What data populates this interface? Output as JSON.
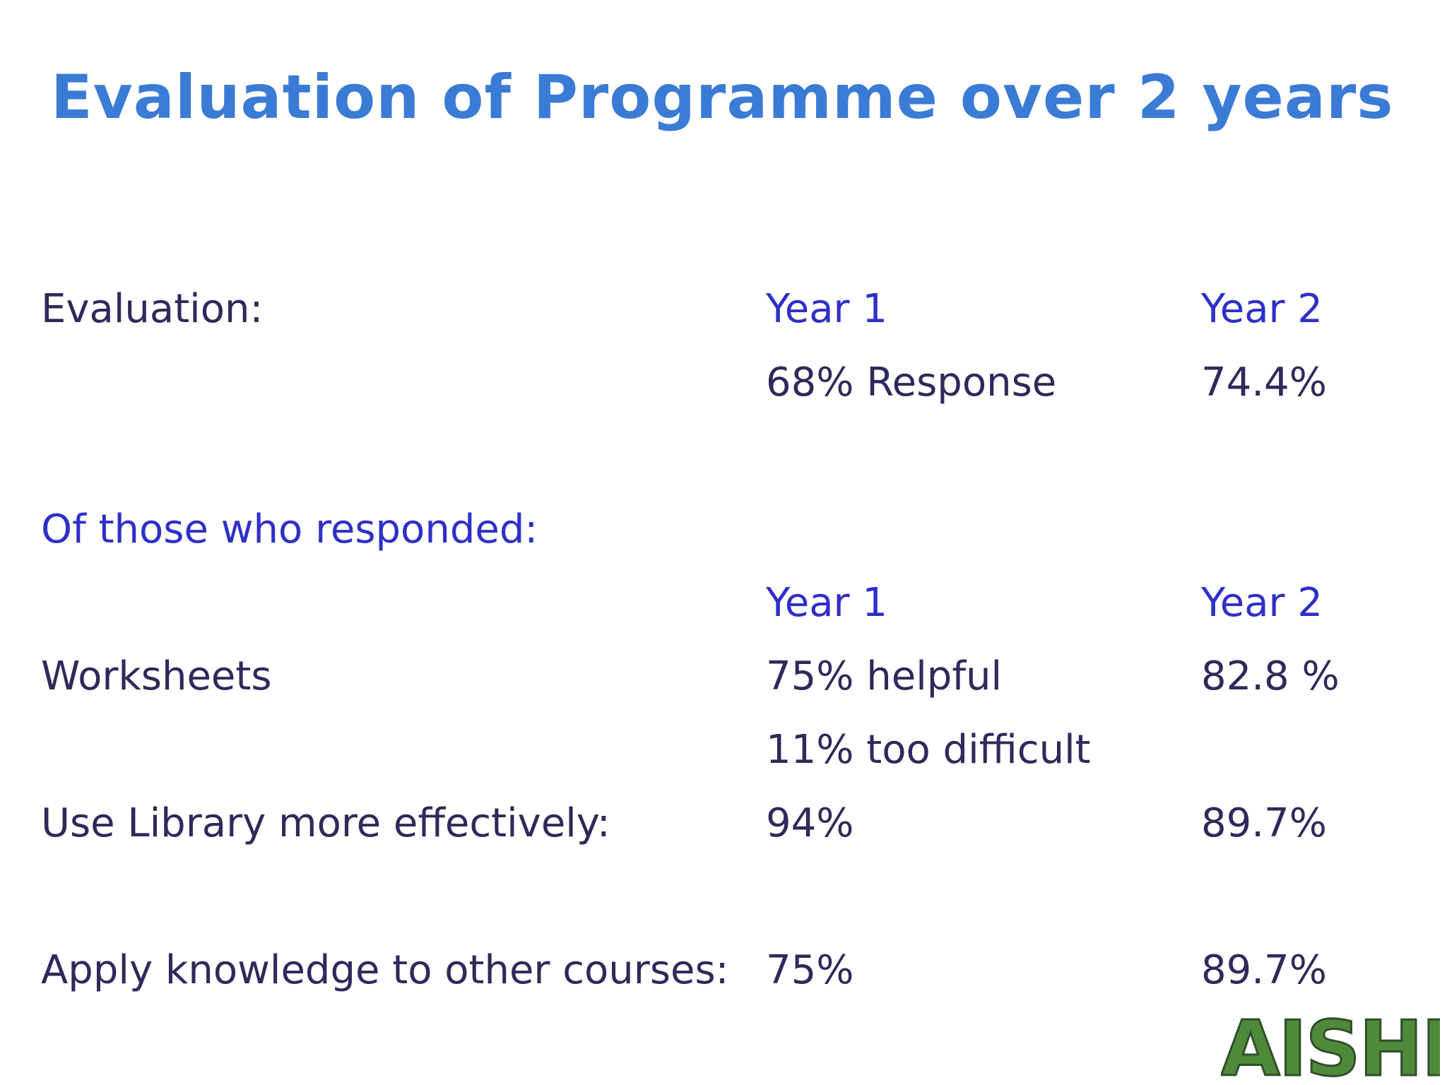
{
  "slide": {
    "title": "Evaluation of Programme over 2 years",
    "evaluation": {
      "label": "Evaluation:",
      "year1_header": "Year 1",
      "year2_header": "Year 2",
      "year1_response": "68% Response",
      "year2_response": "74.4%"
    },
    "respondents": {
      "label": "Of those who responded:",
      "year1_header": "Year 1",
      "year2_header": "Year 2",
      "rows": [
        {
          "label": "Worksheets",
          "year1": "75% helpful",
          "year2": "82.8 %"
        },
        {
          "label": "",
          "year1": "11% too difficult",
          "year2": ""
        },
        {
          "label": "Use Library more effectively:",
          "year1": "94%",
          "year2": "89.7%"
        },
        {
          "label": "Apply knowledge to other courses:",
          "year1": "75%",
          "year2": "89.7%"
        }
      ]
    },
    "logo": {
      "text": "AISHE"
    },
    "colors": {
      "title": "#3a7bd5",
      "body": "#2e2a5a",
      "accent": "#2f2fc8",
      "logo": "#4f8a3a"
    }
  }
}
